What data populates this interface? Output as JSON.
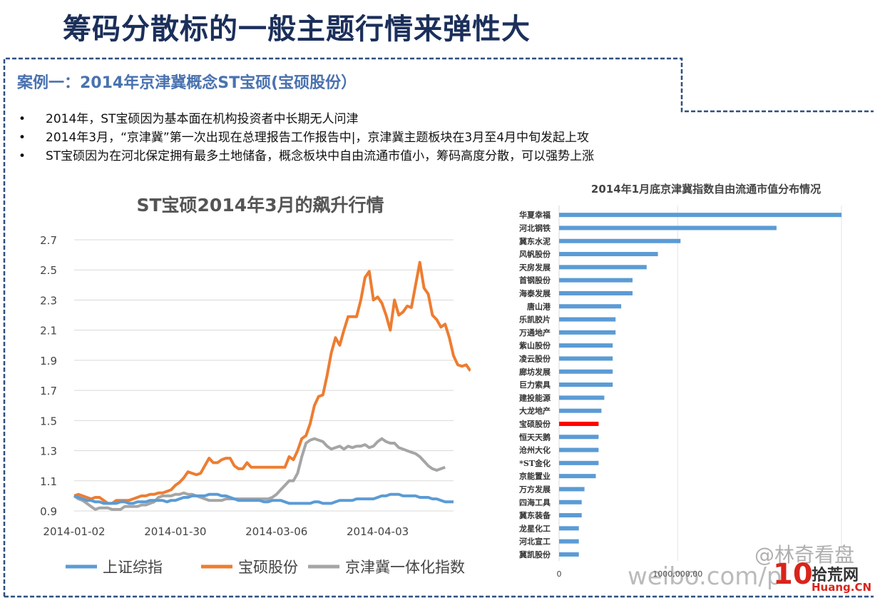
{
  "slide": {
    "title": "筹码分散标的一般主题行情来弹性大",
    "case_title": "案例一：2014年京津冀概念ST宝硕(宝硕股份）",
    "bullets": [
      "2014年，ST宝硕因为基本面在机构投资者中长期无人问津",
      "2014年3月，“京津冀”第一次出现在总理报告工作报告中|，京津冀主题板块在3月至4月中旬发起上攻",
      "ST宝硕因为在河北保定拥有最多土地储备，概念板块中自由流通市值小，筹码高度分散，可以强势上涨"
    ]
  },
  "watermark": {
    "handle": "@林奇看盘",
    "site": "weibo.com/p",
    "logo_number": "10",
    "logo_name": "拾荒网",
    "logo_domain": "Huang.CN"
  },
  "colors": {
    "title": "#1b2f5a",
    "case_title": "#4a72b0",
    "border": "#2f4f7f",
    "shangzheng": "#5b9bd5",
    "baoshuo": "#ed7d31",
    "jingjinji": "#a5a5a5",
    "bar": "#5b9bd5",
    "bar_highlight": "#ff0000"
  },
  "chart_data": [
    {
      "type": "line",
      "title": "ST宝硕2014年3月的飙升行情",
      "x_ticks": [
        "2014-01-02",
        "2014-01-30",
        "2014-03-06",
        "2014-04-03"
      ],
      "ylim": [
        0.9,
        2.7
      ],
      "y_ticks": [
        "0.9",
        "1.1",
        "1.3",
        "1.5",
        "1.7",
        "1.9",
        "2.1",
        "2.3",
        "2.5",
        "2.7"
      ],
      "grid": true,
      "legend_position": "bottom",
      "series": [
        {
          "name": "上证综指",
          "color": "#5b9bd5",
          "values": [
            1.0,
            0.99,
            0.98,
            0.97,
            0.97,
            0.96,
            0.96,
            0.95,
            0.95,
            0.95,
            0.95,
            0.96,
            0.96,
            0.95,
            0.95,
            0.96,
            0.96,
            0.96,
            0.97,
            0.97,
            0.97,
            0.97,
            0.96,
            0.97,
            0.97,
            0.98,
            0.99,
            0.99,
            1.0,
            1.0,
            1.0,
            1.0,
            1.01,
            1.01,
            1.01,
            1.0,
            1.0,
            0.99,
            0.98,
            0.97,
            0.97,
            0.97,
            0.97,
            0.97,
            0.97,
            0.96,
            0.96,
            0.97,
            0.97,
            0.97,
            0.96,
            0.95,
            0.95,
            0.95,
            0.95,
            0.95,
            0.95,
            0.96,
            0.96,
            0.95,
            0.95,
            0.95,
            0.96,
            0.97,
            0.97,
            0.97,
            0.97,
            0.98,
            0.98,
            0.98,
            0.98,
            0.98,
            0.99,
            1.0,
            1.0,
            1.01,
            1.01,
            1.01,
            1.0,
            1.0,
            1.0,
            1.0,
            0.99,
            0.99,
            0.99,
            0.98,
            0.98,
            0.97,
            0.96,
            0.96,
            0.96
          ]
        },
        {
          "name": "宝硕股份",
          "color": "#ed7d31",
          "values": [
            1.0,
            1.01,
            1.0,
            0.99,
            0.98,
            0.99,
            0.99,
            0.97,
            0.95,
            0.95,
            0.97,
            0.97,
            0.97,
            0.97,
            0.98,
            0.99,
            1.0,
            1.0,
            1.01,
            1.01,
            1.02,
            1.02,
            1.03,
            1.04,
            1.07,
            1.09,
            1.12,
            1.16,
            1.15,
            1.14,
            1.15,
            1.2,
            1.25,
            1.22,
            1.22,
            1.24,
            1.25,
            1.25,
            1.2,
            1.18,
            1.18,
            1.22,
            1.19,
            1.19,
            1.19,
            1.19,
            1.19,
            1.19,
            1.19,
            1.19,
            1.19,
            1.26,
            1.24,
            1.3,
            1.38,
            1.4,
            1.48,
            1.6,
            1.66,
            1.67,
            1.8,
            1.95,
            2.05,
            2.0,
            2.1,
            2.19,
            2.19,
            2.19,
            2.3,
            2.45,
            2.49,
            2.3,
            2.32,
            2.28,
            2.2,
            2.1,
            2.3,
            2.2,
            2.22,
            2.26,
            2.25,
            2.4,
            2.55,
            2.38,
            2.34,
            2.2,
            2.17,
            2.12,
            2.14,
            2.05,
            1.93,
            1.87,
            1.86,
            1.87,
            1.83
          ]
        },
        {
          "name": "京津冀一体化指数",
          "color": "#a5a5a5",
          "values": [
            1.0,
            0.98,
            0.97,
            0.95,
            0.93,
            0.91,
            0.92,
            0.92,
            0.92,
            0.91,
            0.91,
            0.91,
            0.93,
            0.93,
            0.93,
            0.93,
            0.94,
            0.94,
            0.95,
            0.96,
            0.99,
            1.0,
            1.0,
            1.0,
            1.01,
            1.01,
            1.02,
            1.01,
            1.01,
            1.0,
            0.99,
            0.98,
            0.97,
            0.97,
            0.97,
            0.97,
            0.98,
            0.98,
            0.98,
            0.98,
            0.98,
            0.98,
            0.98,
            0.98,
            0.98,
            0.98,
            0.98,
            0.99,
            1.01,
            1.04,
            1.07,
            1.1,
            1.1,
            1.15,
            1.26,
            1.35,
            1.37,
            1.38,
            1.37,
            1.36,
            1.33,
            1.31,
            1.32,
            1.33,
            1.31,
            1.33,
            1.32,
            1.33,
            1.33,
            1.34,
            1.32,
            1.33,
            1.36,
            1.38,
            1.36,
            1.35,
            1.35,
            1.32,
            1.31,
            1.3,
            1.29,
            1.28,
            1.26,
            1.23,
            1.2,
            1.18,
            1.17,
            1.18,
            1.19
          ]
        }
      ]
    },
    {
      "type": "bar",
      "orientation": "horizontal",
      "title": "2014年1月底京津冀指数自由流通市值分布情况",
      "x_tick_labels": [
        "0",
        "1000,000,00"
      ],
      "highlight": "宝硕股份",
      "categories": [
        "华夏幸福",
        "河北钢铁",
        "冀东水泥",
        "风帆股份",
        "天房发展",
        "首钢股份",
        "海泰发展",
        "唐山港",
        "乐凯胶片",
        "万通地产",
        "紫山股份",
        "凌云股份",
        "廊坊发展",
        "巨力索具",
        "建投能源",
        "大龙地产",
        "宝硕股份",
        "恒天天鹅",
        "沧州大化",
        "*ST金化",
        "京能置业",
        "万方发展",
        "四海工具",
        "冀东装备",
        "龙星化工",
        "河北宣工",
        "冀凯股份"
      ],
      "values": [
        100,
        77,
        43,
        35,
        31,
        26,
        26,
        22,
        20,
        20,
        19,
        19,
        19,
        19,
        16,
        15,
        14,
        14,
        14,
        14,
        13,
        9,
        8,
        8,
        7,
        7,
        7
      ]
    }
  ]
}
